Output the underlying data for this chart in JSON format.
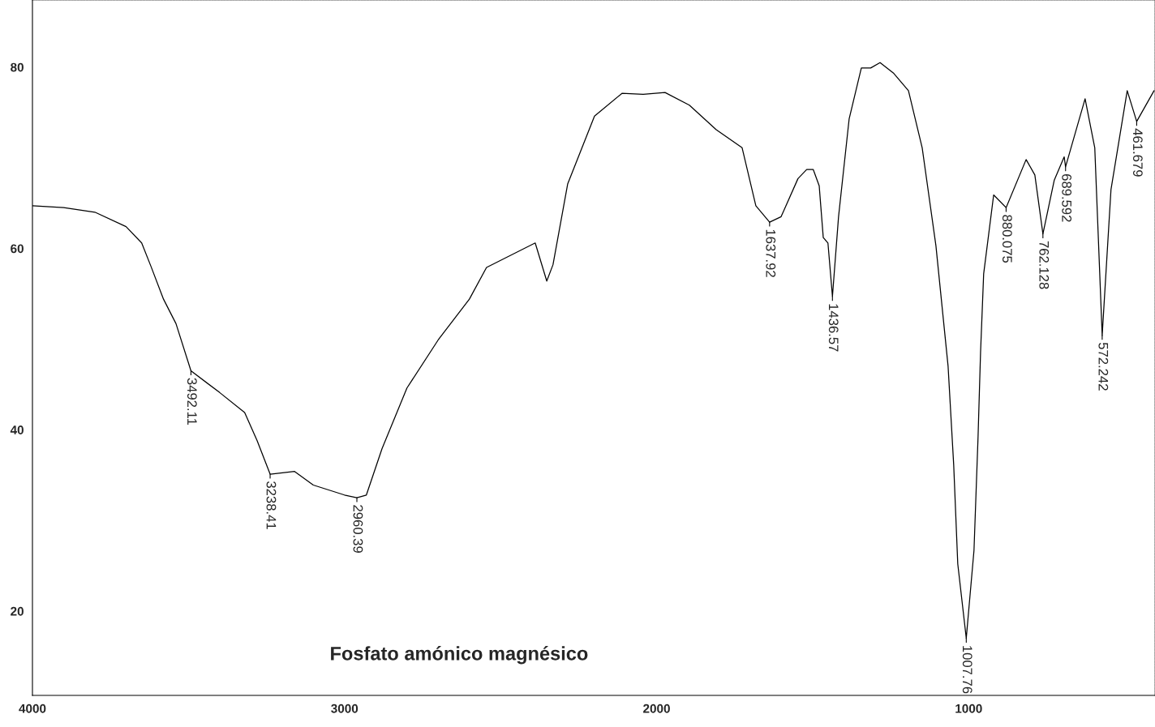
{
  "chart_data": {
    "type": "line",
    "title": "Fosfato amónico magnésico",
    "x": [
      4000,
      3900,
      3800,
      3700,
      3650,
      3620,
      3580,
      3540,
      3492.11,
      3400,
      3320,
      3280,
      3238.41,
      3160,
      3100,
      3000,
      2960.39,
      2930,
      2880,
      2800,
      2700,
      2600,
      2545,
      2389,
      2352,
      2332,
      2285,
      2199,
      2111,
      2043,
      1973,
      1895,
      1809,
      1726,
      1682,
      1637.92,
      1601,
      1547,
      1519,
      1498,
      1479,
      1466,
      1451,
      1436.57,
      1417,
      1383,
      1344,
      1314,
      1284,
      1240,
      1193,
      1149,
      1105,
      1066,
      1048,
      1035,
      1007.76,
      983,
      970,
      962,
      952,
      920,
      880.075,
      816,
      788,
      762.128,
      726,
      694,
      689.592,
      627,
      596,
      572.242,
      544,
      492,
      461.679,
      406
    ],
    "series": [
      {
        "color": "#000000",
        "values": [
          64.7,
          64.5,
          64.0,
          62.4,
          60.6,
          58.0,
          54.4,
          51.7,
          46.5,
          44.1,
          41.9,
          38.8,
          35.1,
          35.4,
          33.9,
          32.8,
          32.5,
          32.8,
          37.9,
          44.6,
          49.9,
          54.4,
          57.9,
          60.6,
          56.4,
          58.2,
          67.1,
          74.6,
          77.1,
          77.0,
          77.2,
          75.8,
          73.1,
          71.1,
          64.7,
          62.9,
          63.5,
          67.7,
          68.7,
          68.7,
          66.9,
          61.2,
          60.6,
          54.7,
          63.5,
          74.3,
          79.9,
          79.9,
          80.5,
          79.3,
          77.4,
          71.1,
          60.3,
          47.0,
          36.1,
          25.2,
          17.0,
          26.7,
          39.2,
          48.5,
          57.2,
          65.9,
          64.5,
          69.8,
          68.1,
          61.6,
          67.5,
          70.1,
          69.0,
          76.5,
          71.1,
          50.4,
          66.5,
          77.4,
          74.0,
          77.4
        ]
      }
    ],
    "xlim": [
      4000,
      403
    ],
    "ylim": [
      10.7,
      87.4
    ],
    "xticks": [
      4000,
      3000,
      2000,
      1000
    ],
    "yticks": [
      20,
      40,
      60,
      80
    ],
    "grid": false,
    "line_style": "solid",
    "marker": "none",
    "annotations": [
      {
        "text": "3492.11",
        "x": 3492.11,
        "y": 46.5
      },
      {
        "text": "3238.41",
        "x": 3238.41,
        "y": 35.1
      },
      {
        "text": "2960.39",
        "x": 2960.39,
        "y": 32.5
      },
      {
        "text": "1637.92",
        "x": 1637.92,
        "y": 62.9
      },
      {
        "text": "1436.57",
        "x": 1436.57,
        "y": 54.7
      },
      {
        "text": "1007.76",
        "x": 1007.76,
        "y": 17.0
      },
      {
        "text": "880.075",
        "x": 880.075,
        "y": 64.5
      },
      {
        "text": "762.128",
        "x": 762.128,
        "y": 61.6
      },
      {
        "text": "689.592",
        "x": 689.592,
        "y": 69.0
      },
      {
        "text": "572.242",
        "x": 572.242,
        "y": 50.4
      },
      {
        "text": "461.679",
        "x": 461.679,
        "y": 74.0
      }
    ]
  }
}
